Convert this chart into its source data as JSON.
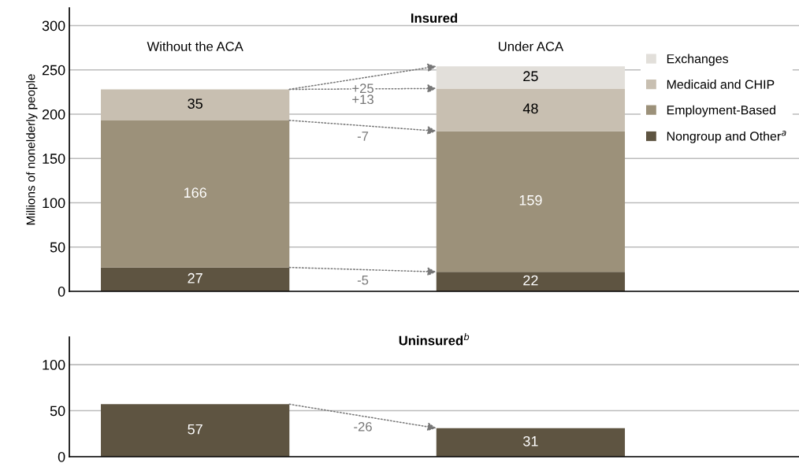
{
  "chart_data": [
    {
      "type": "bar",
      "stacked": true,
      "title": "Insured",
      "ylabel": "Millions of nonelderly people",
      "categories": [
        "Without the ACA",
        "Under ACA"
      ],
      "ylim": [
        0,
        320
      ],
      "yticks": [
        0,
        50,
        100,
        150,
        200,
        250,
        300
      ],
      "grid": "y",
      "legend": "right",
      "data_labels": true,
      "series": [
        {
          "name": "Nongroup and Other$^{a}$",
          "color": "#5e5441",
          "values": [
            27,
            22
          ]
        },
        {
          "name": "Employment-Based",
          "color": "#9c917a",
          "values": [
            166,
            159
          ]
        },
        {
          "name": "Medicaid and CHIP",
          "color": "#c8bfb1",
          "values": [
            35,
            48
          ]
        },
        {
          "name": "Exchanges",
          "color": "#e2dfda",
          "values": [
            null,
            25
          ]
        }
      ],
      "annotations": [
        "+25",
        "+13",
        "-7",
        "-5"
      ]
    },
    {
      "type": "bar",
      "title": "Uninsured$^{b}$",
      "categories": [
        null,
        null
      ],
      "ylim": [
        0,
        130
      ],
      "yticks": [
        0,
        50,
        100
      ],
      "grid": "y",
      "tick_labels": "y",
      "data_labels": true,
      "series": [
        {
          "color": "#5e5441",
          "values": [
            57,
            31
          ]
        }
      ],
      "annotations": [
        "-26"
      ]
    }
  ]
}
